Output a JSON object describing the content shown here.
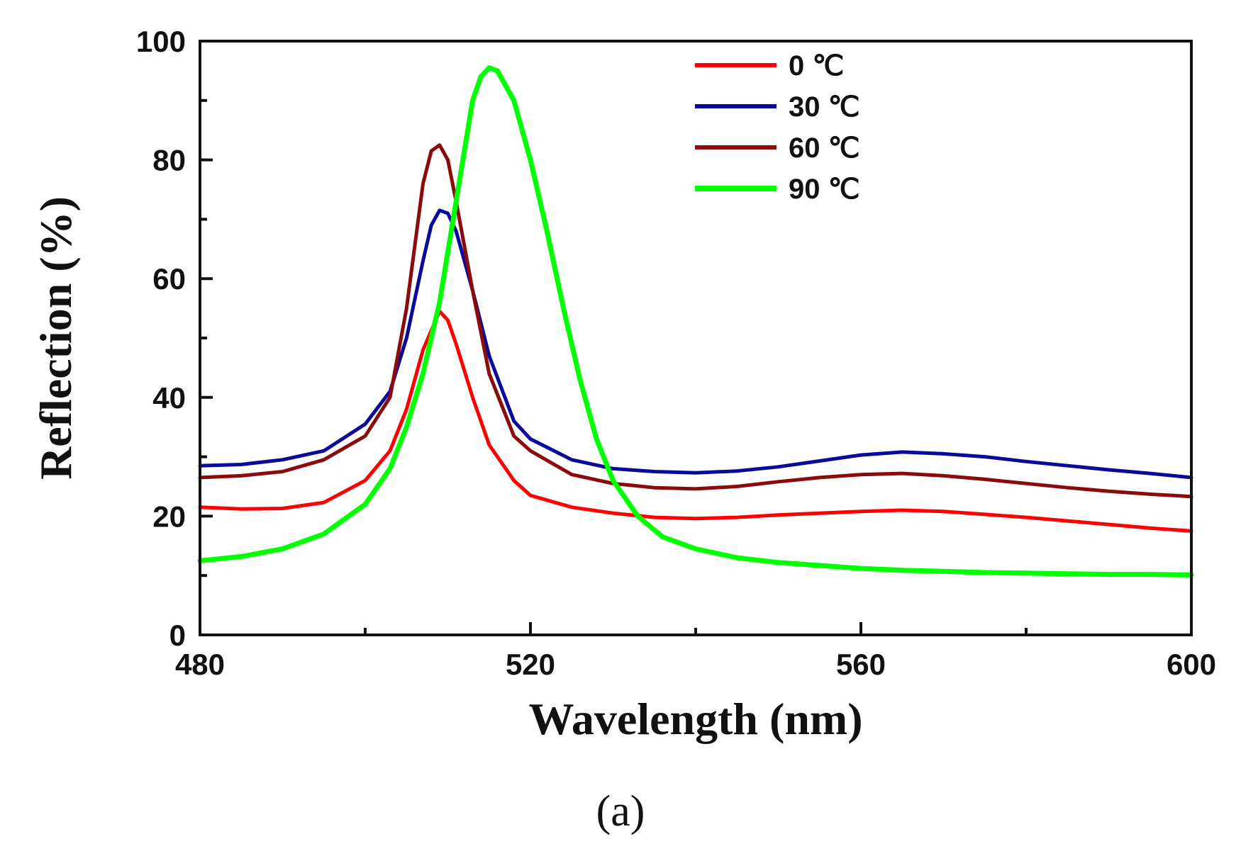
{
  "chart_data": {
    "type": "line",
    "xlabel": "Wavelength (nm)",
    "ylabel": "Reflection (%)",
    "xlim": [
      480,
      600
    ],
    "ylim": [
      0,
      100
    ],
    "x_ticks": [
      480,
      520,
      560,
      600
    ],
    "y_ticks": [
      0,
      20,
      40,
      60,
      80,
      100
    ],
    "grid": false,
    "legend_position": "top-center",
    "panel_label": "(a)",
    "series": [
      {
        "name": "0 ℃",
        "color": "#ff0000",
        "points": [
          [
            480,
            21.5
          ],
          [
            485,
            21.2
          ],
          [
            490,
            21.3
          ],
          [
            495,
            22.3
          ],
          [
            500,
            26
          ],
          [
            503,
            31
          ],
          [
            505,
            38
          ],
          [
            507,
            48
          ],
          [
            509,
            54.5
          ],
          [
            510,
            53
          ],
          [
            511,
            49
          ],
          [
            513,
            40
          ],
          [
            515,
            32
          ],
          [
            518,
            26
          ],
          [
            520,
            23.5
          ],
          [
            525,
            21.5
          ],
          [
            530,
            20.5
          ],
          [
            535,
            19.8
          ],
          [
            540,
            19.6
          ],
          [
            545,
            19.8
          ],
          [
            550,
            20.2
          ],
          [
            555,
            20.5
          ],
          [
            560,
            20.8
          ],
          [
            565,
            21.0
          ],
          [
            570,
            20.8
          ],
          [
            575,
            20.3
          ],
          [
            580,
            19.8
          ],
          [
            585,
            19.2
          ],
          [
            590,
            18.6
          ],
          [
            595,
            18.0
          ],
          [
            600,
            17.5
          ]
        ]
      },
      {
        "name": "30 ℃",
        "color": "#0a0a9a",
        "points": [
          [
            480,
            28.5
          ],
          [
            485,
            28.7
          ],
          [
            490,
            29.5
          ],
          [
            495,
            31
          ],
          [
            500,
            35.5
          ],
          [
            503,
            41
          ],
          [
            505,
            50
          ],
          [
            507,
            63
          ],
          [
            508,
            69
          ],
          [
            509,
            71.5
          ],
          [
            510,
            71
          ],
          [
            511,
            68
          ],
          [
            513,
            58
          ],
          [
            515,
            47
          ],
          [
            518,
            36
          ],
          [
            520,
            33
          ],
          [
            525,
            29.5
          ],
          [
            530,
            28
          ],
          [
            535,
            27.5
          ],
          [
            540,
            27.3
          ],
          [
            545,
            27.6
          ],
          [
            550,
            28.3
          ],
          [
            555,
            29.3
          ],
          [
            560,
            30.3
          ],
          [
            565,
            30.8
          ],
          [
            570,
            30.5
          ],
          [
            575,
            30
          ],
          [
            580,
            29.2
          ],
          [
            585,
            28.5
          ],
          [
            590,
            27.8
          ],
          [
            595,
            27.2
          ],
          [
            600,
            26.5
          ]
        ]
      },
      {
        "name": "60 ℃",
        "color": "#8b0a0a",
        "points": [
          [
            480,
            26.5
          ],
          [
            485,
            26.8
          ],
          [
            490,
            27.5
          ],
          [
            495,
            29.5
          ],
          [
            500,
            33.5
          ],
          [
            503,
            40
          ],
          [
            505,
            55
          ],
          [
            507,
            76
          ],
          [
            508,
            81.5
          ],
          [
            509,
            82.5
          ],
          [
            510,
            80
          ],
          [
            511,
            73
          ],
          [
            513,
            58
          ],
          [
            515,
            44
          ],
          [
            518,
            33.5
          ],
          [
            520,
            31
          ],
          [
            525,
            27
          ],
          [
            530,
            25.5
          ],
          [
            535,
            24.8
          ],
          [
            540,
            24.6
          ],
          [
            545,
            25
          ],
          [
            550,
            25.8
          ],
          [
            555,
            26.5
          ],
          [
            560,
            27
          ],
          [
            565,
            27.2
          ],
          [
            570,
            26.8
          ],
          [
            575,
            26.2
          ],
          [
            580,
            25.5
          ],
          [
            585,
            24.8
          ],
          [
            590,
            24.2
          ],
          [
            595,
            23.7
          ],
          [
            600,
            23.3
          ]
        ]
      },
      {
        "name": "90 ℃",
        "color": "#00ff00",
        "points": [
          [
            480,
            12.5
          ],
          [
            485,
            13.2
          ],
          [
            490,
            14.5
          ],
          [
            495,
            17
          ],
          [
            500,
            22
          ],
          [
            503,
            28
          ],
          [
            505,
            35
          ],
          [
            507,
            44
          ],
          [
            509,
            56
          ],
          [
            511,
            73
          ],
          [
            513,
            90
          ],
          [
            514,
            94
          ],
          [
            515,
            95.5
          ],
          [
            516,
            95
          ],
          [
            518,
            90
          ],
          [
            520,
            80
          ],
          [
            522,
            68
          ],
          [
            524,
            55
          ],
          [
            526,
            43
          ],
          [
            528,
            33
          ],
          [
            530,
            26
          ],
          [
            533,
            20
          ],
          [
            536,
            16.5
          ],
          [
            540,
            14.5
          ],
          [
            545,
            13
          ],
          [
            550,
            12.2
          ],
          [
            555,
            11.7
          ],
          [
            560,
            11.2
          ],
          [
            565,
            10.9
          ],
          [
            570,
            10.7
          ],
          [
            575,
            10.5
          ],
          [
            580,
            10.4
          ],
          [
            585,
            10.3
          ],
          [
            590,
            10.2
          ],
          [
            595,
            10.2
          ],
          [
            600,
            10.1
          ]
        ]
      }
    ]
  }
}
